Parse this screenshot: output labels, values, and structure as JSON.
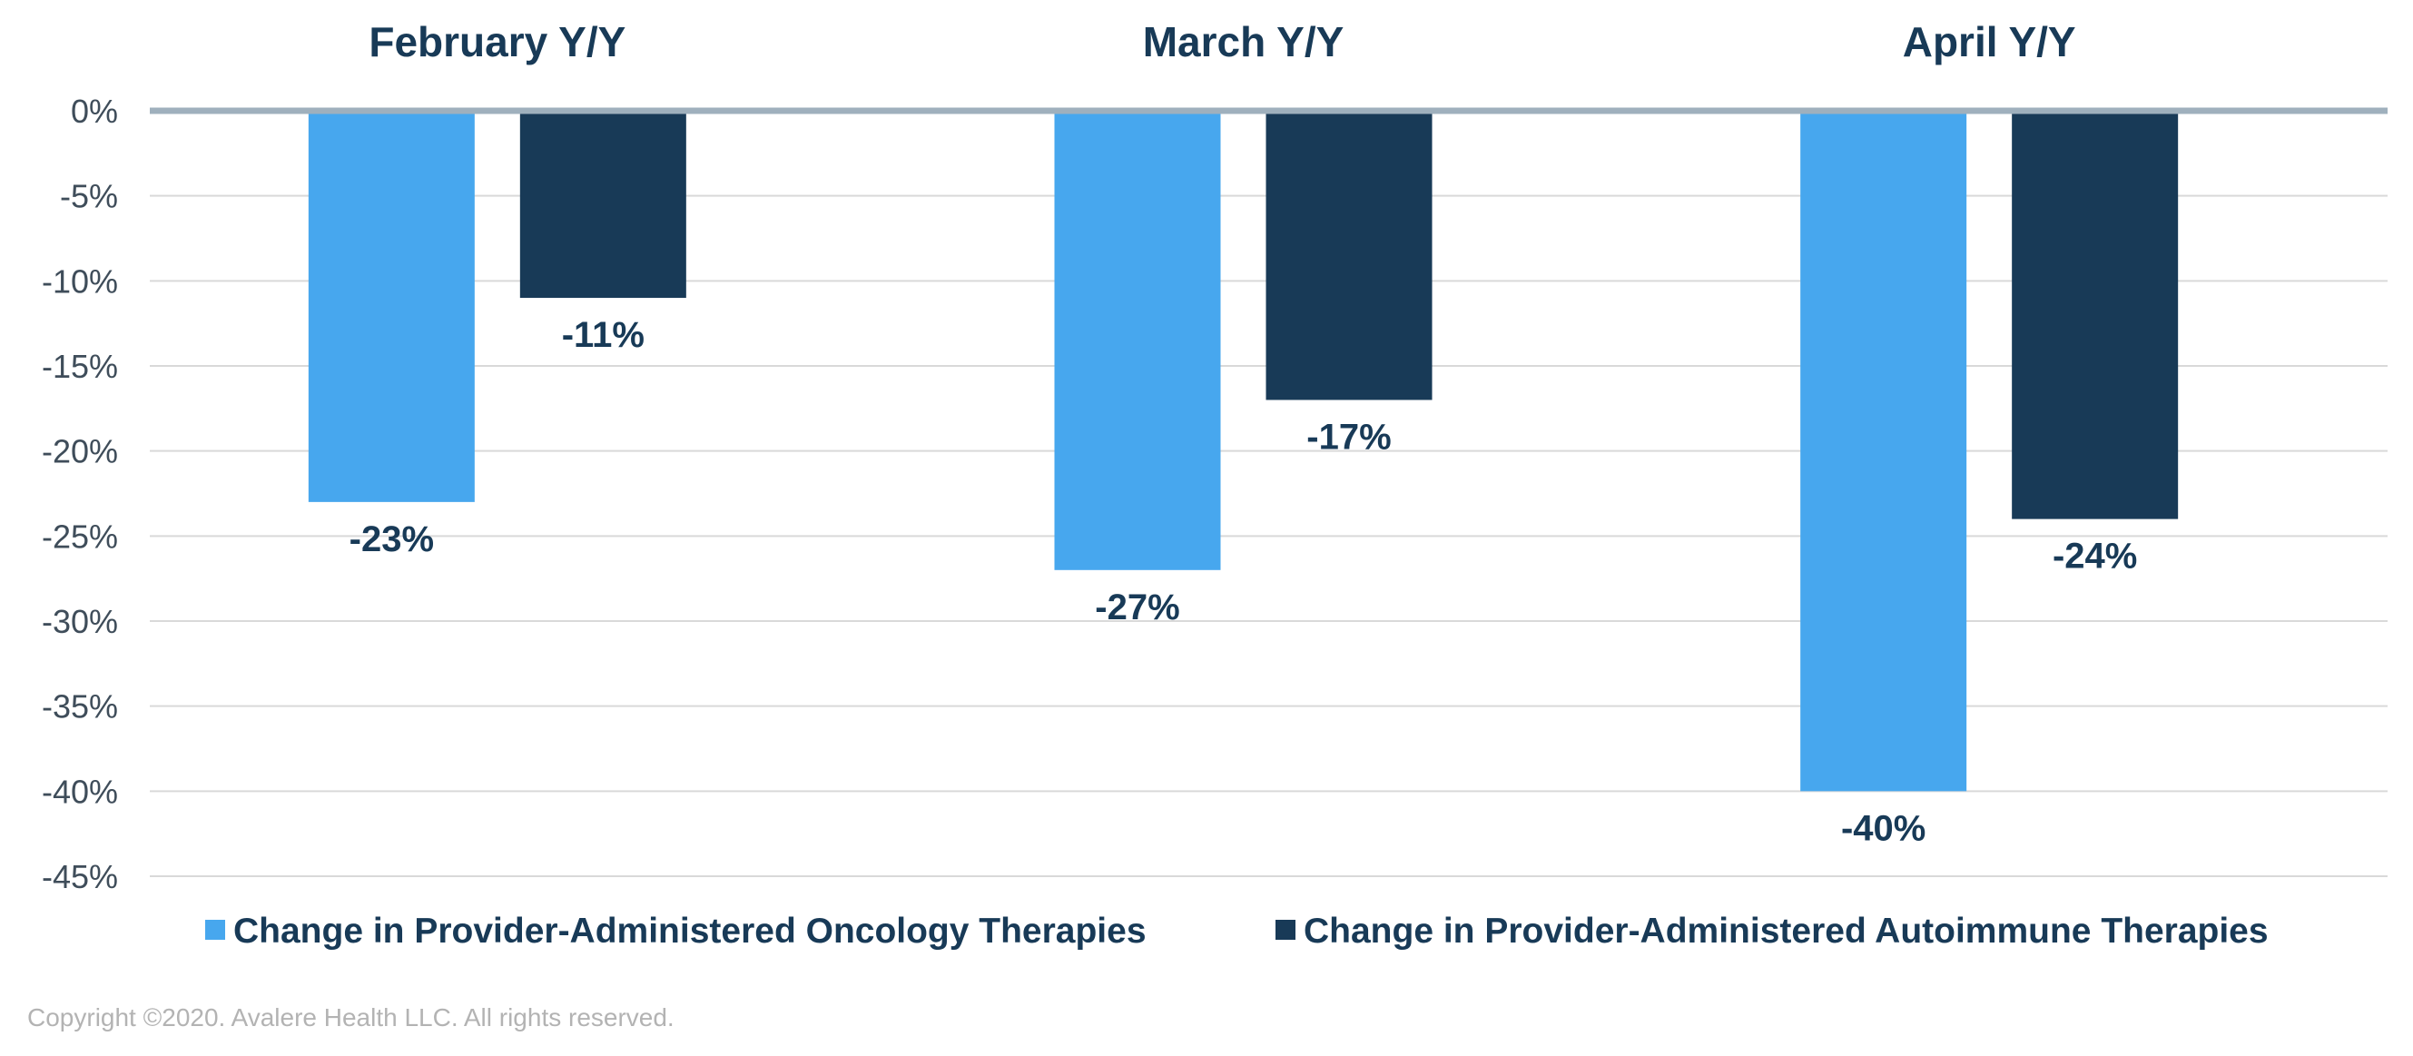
{
  "chart_data": {
    "type": "bar",
    "categories": [
      "February Y/Y",
      "March Y/Y",
      "April Y/Y"
    ],
    "series": [
      {
        "name": "Change in Provider-Administered Oncology Therapies",
        "values": [
          -23,
          -27,
          -40
        ],
        "color": "#47a7ee"
      },
      {
        "name": "Change in Provider-Administered Autoimmune Therapies",
        "values": [
          -11,
          -17,
          -24
        ],
        "color": "#183a57"
      }
    ],
    "data_labels": [
      [
        "-23%",
        "-27%",
        "-40%"
      ],
      [
        "-11%",
        "-17%",
        "-24%"
      ]
    ],
    "yticks": [
      0,
      -5,
      -10,
      -15,
      -20,
      -25,
      -30,
      -35,
      -40,
      -45
    ],
    "ytick_labels": [
      "0%",
      "-5%",
      "-10%",
      "-15%",
      "-20%",
      "-25%",
      "-30%",
      "-35%",
      "-40%",
      "-45%"
    ],
    "ylim": [
      -45,
      0
    ],
    "grid": true,
    "legend_position": "bottom",
    "title": "",
    "xlabel": "",
    "ylabel": ""
  },
  "footer": {
    "copyright": "Copyright ©2020. Avalere Health LLC. All rights reserved."
  }
}
